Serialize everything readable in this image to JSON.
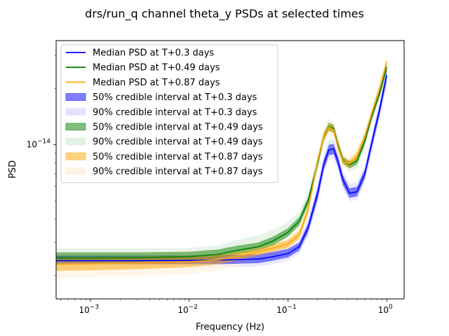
{
  "chart_data": {
    "type": "line",
    "title": "drs/run_q channel theta_y PSDs at selected times",
    "xlabel": "Frequency (Hz)",
    "ylabel": "PSD",
    "xscale": "log",
    "yscale": "log",
    "xlim": [
      0.00045,
      1.5
    ],
    "ylim": [
      1.5e-15,
      3.6e-14
    ],
    "xticks": [
      {
        "value": 0.001,
        "base": "10",
        "exp": "−3"
      },
      {
        "value": 0.01,
        "base": "10",
        "exp": "−2"
      },
      {
        "value": 0.1,
        "base": "10",
        "exp": "−1"
      },
      {
        "value": 1,
        "base": "10",
        "exp": "0"
      }
    ],
    "yticks": [
      {
        "value": 1e-14,
        "base": "10",
        "exp": "−14"
      }
    ],
    "grid": false,
    "legend_position": "upper-left",
    "x": [
      0.00045,
      0.001,
      0.003,
      0.01,
      0.02,
      0.03,
      0.05,
      0.07,
      0.1,
      0.13,
      0.16,
      0.2,
      0.23,
      0.26,
      0.29,
      0.32,
      0.36,
      0.42,
      0.5,
      0.6,
      0.7,
      0.85,
      1.0
    ],
    "series": [
      {
        "name": "Median PSD at T+0.3 days",
        "color": "#0000ff",
        "median": [
          2.4e-15,
          2.4e-15,
          2.4e-15,
          2.41e-15,
          2.42e-15,
          2.43e-15,
          2.45e-15,
          2.52e-15,
          2.62e-15,
          2.85e-15,
          3.6e-15,
          5.5e-15,
          7.8e-15,
          9.4e-15,
          9.5e-15,
          8.2e-15,
          6.5e-15,
          5.5e-15,
          5.6e-15,
          7e-15,
          1e-14,
          1.55e-14,
          2.35e-14
        ],
        "ci50_lo": [
          2.3e-15,
          2.3e-15,
          2.3e-15,
          2.3e-15,
          2.3e-15,
          2.31e-15,
          2.33e-15,
          2.4e-15,
          2.5e-15,
          2.72e-15,
          3.4e-15,
          5.1e-15,
          7.3e-15,
          8.8e-15,
          8.9e-15,
          7.7e-15,
          6.1e-15,
          5.2e-15,
          5.3e-15,
          6.6e-15,
          9.4e-15,
          1.45e-14,
          2.2e-14
        ],
        "ci50_hi": [
          2.55e-15,
          2.55e-15,
          2.55e-15,
          2.56e-15,
          2.58e-15,
          2.58e-15,
          2.6e-15,
          2.67e-15,
          2.78e-15,
          3e-15,
          3.8e-15,
          5.9e-15,
          8.3e-15,
          1e-14,
          1.01e-14,
          8.7e-15,
          6.9e-15,
          5.85e-15,
          5.95e-15,
          7.4e-15,
          1.06e-14,
          1.65e-14,
          2.5e-14
        ],
        "ci90_lo": [
          2.2e-15,
          2.2e-15,
          2.2e-15,
          2.2e-15,
          2.21e-15,
          2.22e-15,
          2.24e-15,
          2.3e-15,
          2.4e-15,
          2.62e-15,
          3.25e-15,
          4.8e-15,
          6.9e-15,
          8.3e-15,
          8.4e-15,
          7.3e-15,
          5.8e-15,
          5e-15,
          5.05e-15,
          6.3e-15,
          8.9e-15,
          1.37e-14,
          2.05e-14
        ],
        "ci90_hi": [
          2.65e-15,
          2.65e-15,
          2.65e-15,
          2.66e-15,
          2.68e-15,
          2.7e-15,
          2.72e-15,
          2.8e-15,
          2.92e-15,
          3.15e-15,
          4e-15,
          6.2e-15,
          8.8e-15,
          1.06e-14,
          1.07e-14,
          9.2e-15,
          7.3e-15,
          6.2e-15,
          6.3e-15,
          7.8e-15,
          1.12e-14,
          1.75e-14,
          2.7e-14
        ],
        "ci50_label": "50% credible interval at T+0.3 days",
        "ci90_label": "90% credible interval at T+0.3 days",
        "ci50_color": "#0000ff",
        "ci90_color": "#e0e0ff"
      },
      {
        "name": "Median PSD at T+0.49 days",
        "color": "#008000",
        "median": [
          2.48e-15,
          2.48e-15,
          2.49e-15,
          2.52e-15,
          2.6e-15,
          2.72e-15,
          2.85e-15,
          3.05e-15,
          3.4e-15,
          3.9e-15,
          5e-15,
          8e-15,
          1.1e-14,
          1.25e-14,
          1.22e-14,
          1e-14,
          8.3e-15,
          7.8e-15,
          8.2e-15,
          1.05e-14,
          1.4e-14,
          1.9e-14,
          2.6e-14
        ],
        "ci50_lo": [
          2.36e-15,
          2.36e-15,
          2.37e-15,
          2.4e-15,
          2.48e-15,
          2.59e-15,
          2.72e-15,
          2.9e-15,
          3.23e-15,
          3.7e-15,
          4.75e-15,
          7.6e-15,
          1.05e-14,
          1.19e-14,
          1.16e-14,
          9.55e-15,
          7.95e-15,
          7.45e-15,
          7.85e-15,
          1e-14,
          1.34e-14,
          1.82e-14,
          2.48e-14
        ],
        "ci50_hi": [
          2.66e-15,
          2.66e-15,
          2.66e-15,
          2.68e-15,
          2.76e-15,
          2.88e-15,
          3e-15,
          3.22e-15,
          3.58e-15,
          4.1e-15,
          5.25e-15,
          8.4e-15,
          1.15e-14,
          1.31e-14,
          1.28e-14,
          1.05e-14,
          8.65e-15,
          8.15e-15,
          8.55e-15,
          1.1e-14,
          1.46e-14,
          1.98e-14,
          2.72e-14
        ],
        "ci90_lo": [
          2.25e-15,
          2.25e-15,
          2.26e-15,
          2.3e-15,
          2.38e-15,
          2.49e-15,
          2.61e-15,
          2.78e-15,
          3.1e-15,
          3.55e-15,
          4.55e-15,
          7.3e-15,
          1.01e-14,
          1.14e-14,
          1.11e-14,
          9.2e-15,
          7.65e-15,
          7.2e-15,
          7.55e-15,
          9.6e-15,
          1.29e-14,
          1.75e-14,
          2.38e-14
        ],
        "ci90_hi": [
          2.8e-15,
          2.8e-15,
          2.8e-15,
          2.8e-15,
          2.9e-15,
          3.1e-15,
          3.28e-15,
          3.5e-15,
          3.85e-15,
          4.4e-15,
          5.6e-15,
          8.9e-15,
          1.21e-14,
          1.38e-14,
          1.34e-14,
          1.1e-14,
          9e-15,
          8.5e-15,
          8.95e-15,
          1.14e-14,
          1.52e-14,
          2.06e-14,
          2.84e-14
        ],
        "ci50_label": "50% credible interval at T+0.49 days",
        "ci90_label": "90% credible interval at T+0.49 days",
        "ci50_color": "#008000",
        "ci90_color": "#e0f0e0"
      },
      {
        "name": "Median PSD at T+0.87 days",
        "color": "#ffa500",
        "median": [
          2.3e-15,
          2.31e-15,
          2.33e-15,
          2.37e-15,
          2.43e-15,
          2.52e-15,
          2.68e-15,
          2.8e-15,
          2.95e-15,
          3.3e-15,
          4.5e-15,
          8.2e-15,
          1.1e-14,
          1.24e-14,
          1.2e-14,
          9.8e-15,
          8.2e-15,
          7.9e-15,
          8.7e-15,
          1.1e-14,
          1.45e-14,
          2e-14,
          2.75e-14
        ],
        "ci50_lo": [
          2.12e-15,
          2.13e-15,
          2.16e-15,
          2.22e-15,
          2.3e-15,
          2.4e-15,
          2.56e-15,
          2.68e-15,
          2.82e-15,
          3.15e-15,
          4.3e-15,
          7.85e-15,
          1.05e-14,
          1.19e-14,
          1.15e-14,
          9.4e-15,
          7.85e-15,
          7.55e-15,
          8.3e-15,
          1.05e-14,
          1.39e-14,
          1.92e-14,
          2.63e-14
        ],
        "ci50_hi": [
          2.5e-15,
          2.51e-15,
          2.52e-15,
          2.55e-15,
          2.58e-15,
          2.66e-15,
          2.8e-15,
          2.93e-15,
          3.1e-15,
          3.46e-15,
          4.72e-15,
          8.6e-15,
          1.15e-14,
          1.3e-14,
          1.26e-14,
          1.02e-14,
          8.55e-15,
          8.25e-15,
          9.1e-15,
          1.15e-14,
          1.51e-14,
          2.08e-14,
          2.88e-14
        ],
        "ci90_lo": [
          1.95e-15,
          1.96e-15,
          1.98e-15,
          2.04e-15,
          2.12e-15,
          2.24e-15,
          2.42e-15,
          2.55e-15,
          2.7e-15,
          3.02e-15,
          4.1e-15,
          7.5e-15,
          1.01e-14,
          1.14e-14,
          1.1e-14,
          9e-15,
          7.55e-15,
          7.25e-15,
          7.95e-15,
          1e-14,
          1.33e-14,
          1.83e-14,
          2.5e-14
        ],
        "ci90_hi": [
          2.65e-15,
          2.66e-15,
          2.68e-15,
          2.7e-15,
          2.74e-15,
          2.8e-15,
          2.95e-15,
          3.08e-15,
          3.28e-15,
          3.65e-15,
          4.95e-15,
          9e-15,
          1.2e-14,
          1.36e-14,
          1.32e-14,
          1.07e-14,
          8.95e-15,
          8.65e-15,
          9.55e-15,
          1.21e-14,
          1.59e-14,
          2.2e-14,
          3.05e-14
        ],
        "ci50_label": "50% credible interval at T+0.87 days",
        "ci90_label": "90% credible interval at T+0.87 days",
        "ci50_color": "#ffa500",
        "ci90_color": "#fff3e0"
      }
    ]
  }
}
